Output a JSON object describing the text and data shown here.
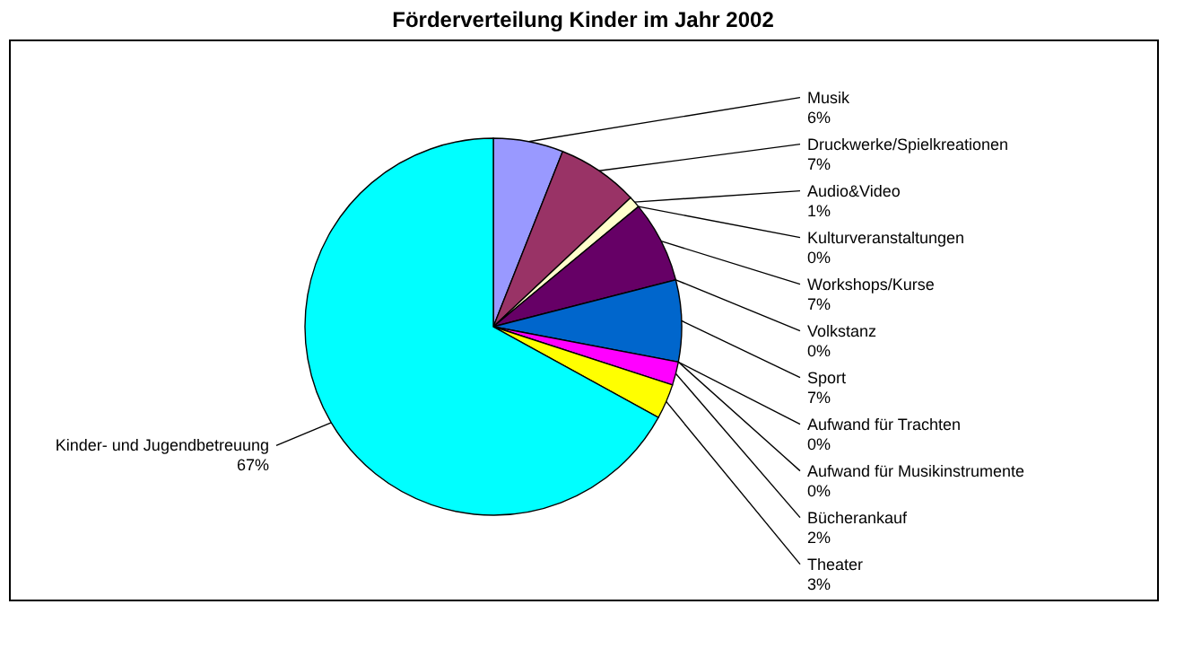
{
  "chart_data": {
    "type": "pie",
    "title": "Förderverteilung Kinder im Jahr 2002",
    "categories": [
      "Musik",
      "Druckwerke/Spielkreationen",
      "Audio&Video",
      "Kulturveranstaltungen",
      "Workshops/Kurse",
      "Volkstanz",
      "Sport",
      "Aufwand für Trachten",
      "Aufwand für Musikinstrumente",
      "Bücherankauf",
      "Theater",
      "Kinder- und Jugendbetreuung"
    ],
    "values": [
      6,
      7,
      1,
      0,
      7,
      0,
      7,
      0,
      0,
      2,
      3,
      67
    ],
    "value_labels": [
      "6%",
      "7%",
      "1%",
      "0%",
      "7%",
      "0%",
      "7%",
      "0%",
      "0%",
      "2%",
      "3%",
      "67%"
    ],
    "colors": [
      "#9999ff",
      "#993366",
      "#ffffcc",
      "#ccffff",
      "#660066",
      "#ff8080",
      "#0066cc",
      "#ccccff",
      "#000080",
      "#ff00ff",
      "#ffff00",
      "#00ffff"
    ],
    "legend": false
  }
}
